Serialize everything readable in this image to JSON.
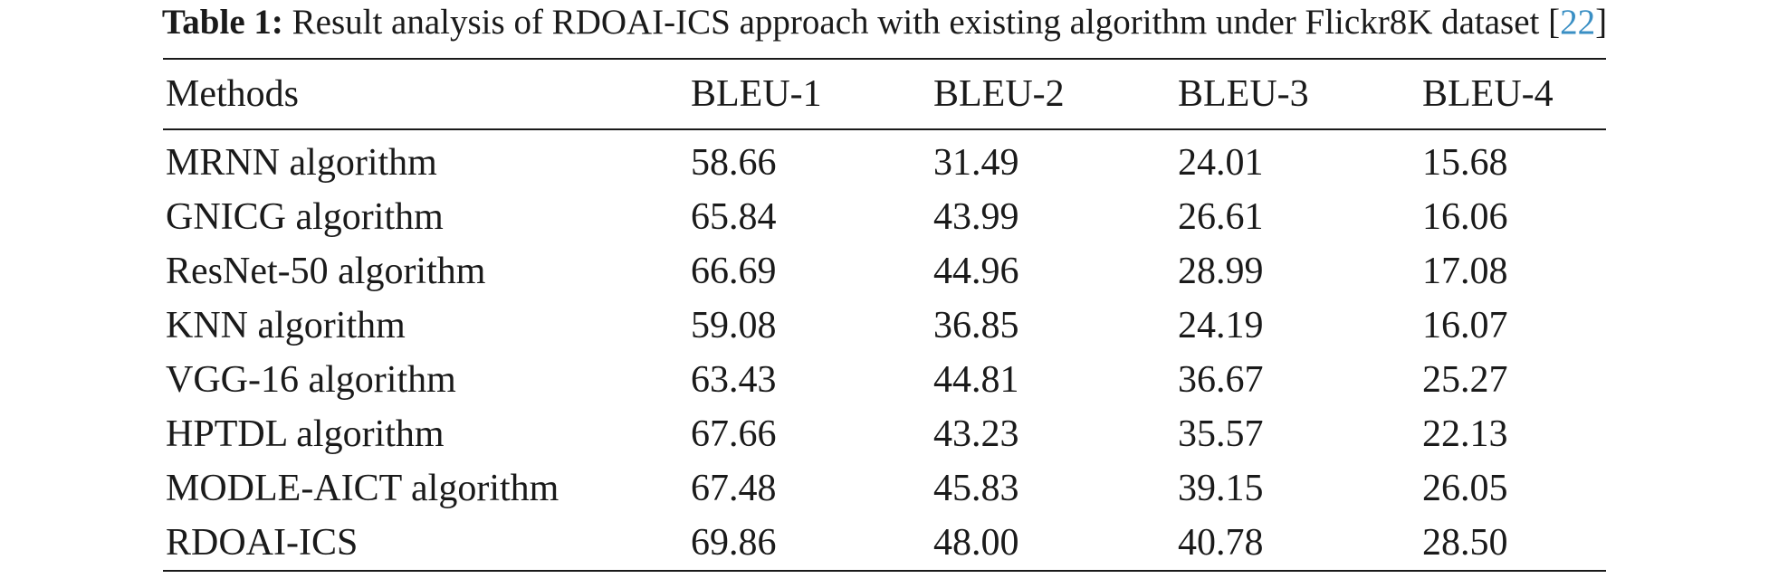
{
  "caption": {
    "label": "Table 1:",
    "text": " Result analysis of RDOAI-ICS approach with existing algorithm under Flickr8K dataset [",
    "citation": "22",
    "close": "]"
  },
  "table": {
    "headers": [
      "Methods",
      "BLEU-1",
      "BLEU-2",
      "BLEU-3",
      "BLEU-4"
    ],
    "rows": [
      [
        "MRNN algorithm",
        "58.66",
        "31.49",
        "24.01",
        "15.68"
      ],
      [
        "GNICG algorithm",
        "65.84",
        "43.99",
        "26.61",
        "16.06"
      ],
      [
        "ResNet-50 algorithm",
        "66.69",
        "44.96",
        "28.99",
        "17.08"
      ],
      [
        "KNN algorithm",
        "59.08",
        "36.85",
        "24.19",
        "16.07"
      ],
      [
        "VGG-16 algorithm",
        "63.43",
        "44.81",
        "36.67",
        "25.27"
      ],
      [
        "HPTDL algorithm",
        "67.66",
        "43.23",
        "35.57",
        "22.13"
      ],
      [
        "MODLE-AICT algorithm",
        "67.48",
        "45.83",
        "39.15",
        "26.05"
      ],
      [
        "RDOAI-ICS",
        "69.86",
        "48.00",
        "40.78",
        "28.50"
      ]
    ]
  },
  "colors": {
    "text": "#1a1a1a",
    "citation_link": "#3a8fc4"
  }
}
